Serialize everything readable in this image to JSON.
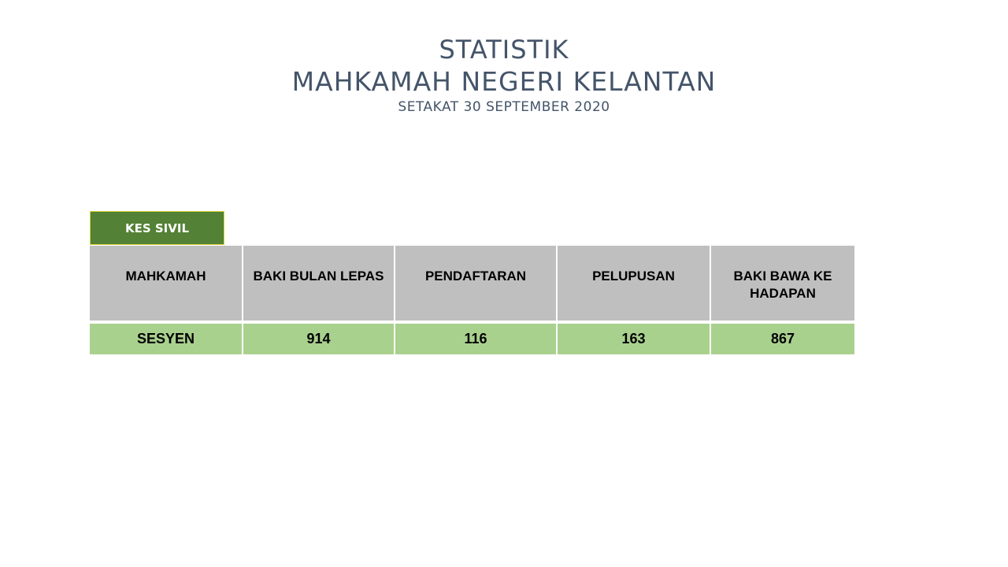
{
  "title": {
    "line1": "STATISTIK",
    "line2": "MAHKAMAH NEGERI KELANTAN",
    "line3": "SETAKAT 30 SEPTEMBER 2020"
  },
  "tag": {
    "label": "KES SIVIL"
  },
  "table": {
    "headers": [
      "MAHKAMAH",
      "BAKI BULAN LEPAS",
      "PENDAFTARAN",
      "PELUPUSAN",
      "BAKI BAWA KE HADAPAN"
    ],
    "rows": [
      [
        "SESYEN",
        "914",
        "116",
        "163",
        "867"
      ]
    ]
  },
  "colors": {
    "title_text": "#44546a",
    "tag_background": "#538135",
    "tag_border": "#d9d23a",
    "header_background": "#bfbfbf",
    "row_background": "#a9d18e"
  }
}
